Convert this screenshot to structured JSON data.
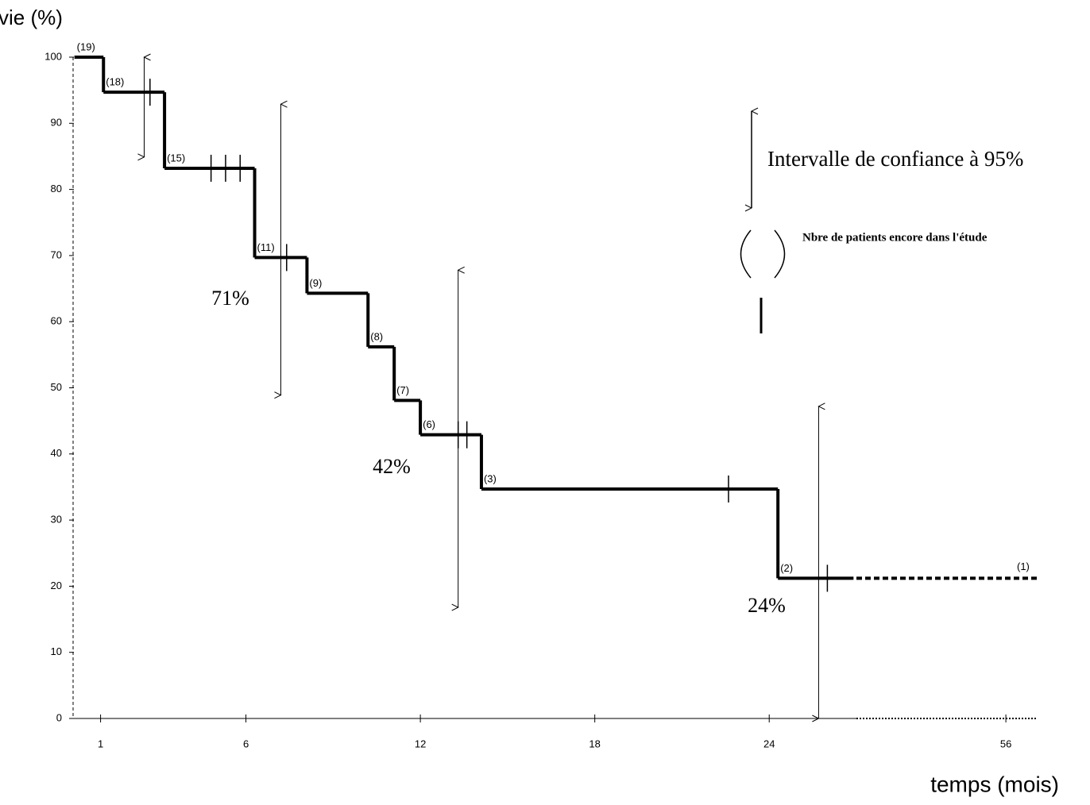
{
  "chart_data": {
    "type": "step",
    "title": "vie (%)",
    "x_label": "temps (mois)",
    "xlim": [
      0,
      62
    ],
    "x_break": 27,
    "xticks": [
      1,
      6,
      12,
      18,
      24,
      56
    ],
    "ylim": [
      0,
      100
    ],
    "yticks": [
      0,
      10,
      20,
      30,
      40,
      50,
      60,
      70,
      80,
      90,
      100
    ],
    "color": "#000000",
    "series": [
      {
        "x": [
          0.1,
          1.1,
          3.2,
          6.3,
          8.1,
          10.2,
          11.1,
          12.0,
          14.1,
          24.3
        ],
        "values": [
          100,
          94.7,
          83.2,
          69.7,
          64.3,
          56.2,
          48.1,
          42.9,
          34.7,
          21.2
        ],
        "x_end": 26.9,
        "at_risk": [
          "(19)",
          "(18)",
          "(15)",
          "(11)",
          "(9)",
          "(8)",
          "(7)",
          "(6)",
          "(3)",
          "(2)"
        ],
        "style": "solid"
      },
      {
        "x": [
          27
        ],
        "values": [
          21.2
        ],
        "x_end": 62,
        "end_label": "(1)",
        "style": "dotted"
      }
    ],
    "censored": {
      "x": [
        2.7,
        4.8,
        5.3,
        5.8,
        7.4,
        13.3,
        13.6,
        22.6,
        26.0
      ],
      "values": [
        94.7,
        83.2,
        83.2,
        83.2,
        69.7,
        42.9,
        42.9,
        34.7,
        21.2
      ]
    },
    "ci": {
      "x": [
        2.5,
        7.2,
        13.3,
        25.7
      ],
      "low": [
        84.9,
        48.9,
        16.8,
        0
      ],
      "high": [
        100,
        92.9,
        67.8,
        47.2
      ]
    },
    "annotations": [
      "71%",
      "42%",
      "24%"
    ],
    "legend": {
      "ci": "Intervalle de confiance à 95%",
      "at_risk": "Nbre de patients encore dans l'étude"
    }
  }
}
